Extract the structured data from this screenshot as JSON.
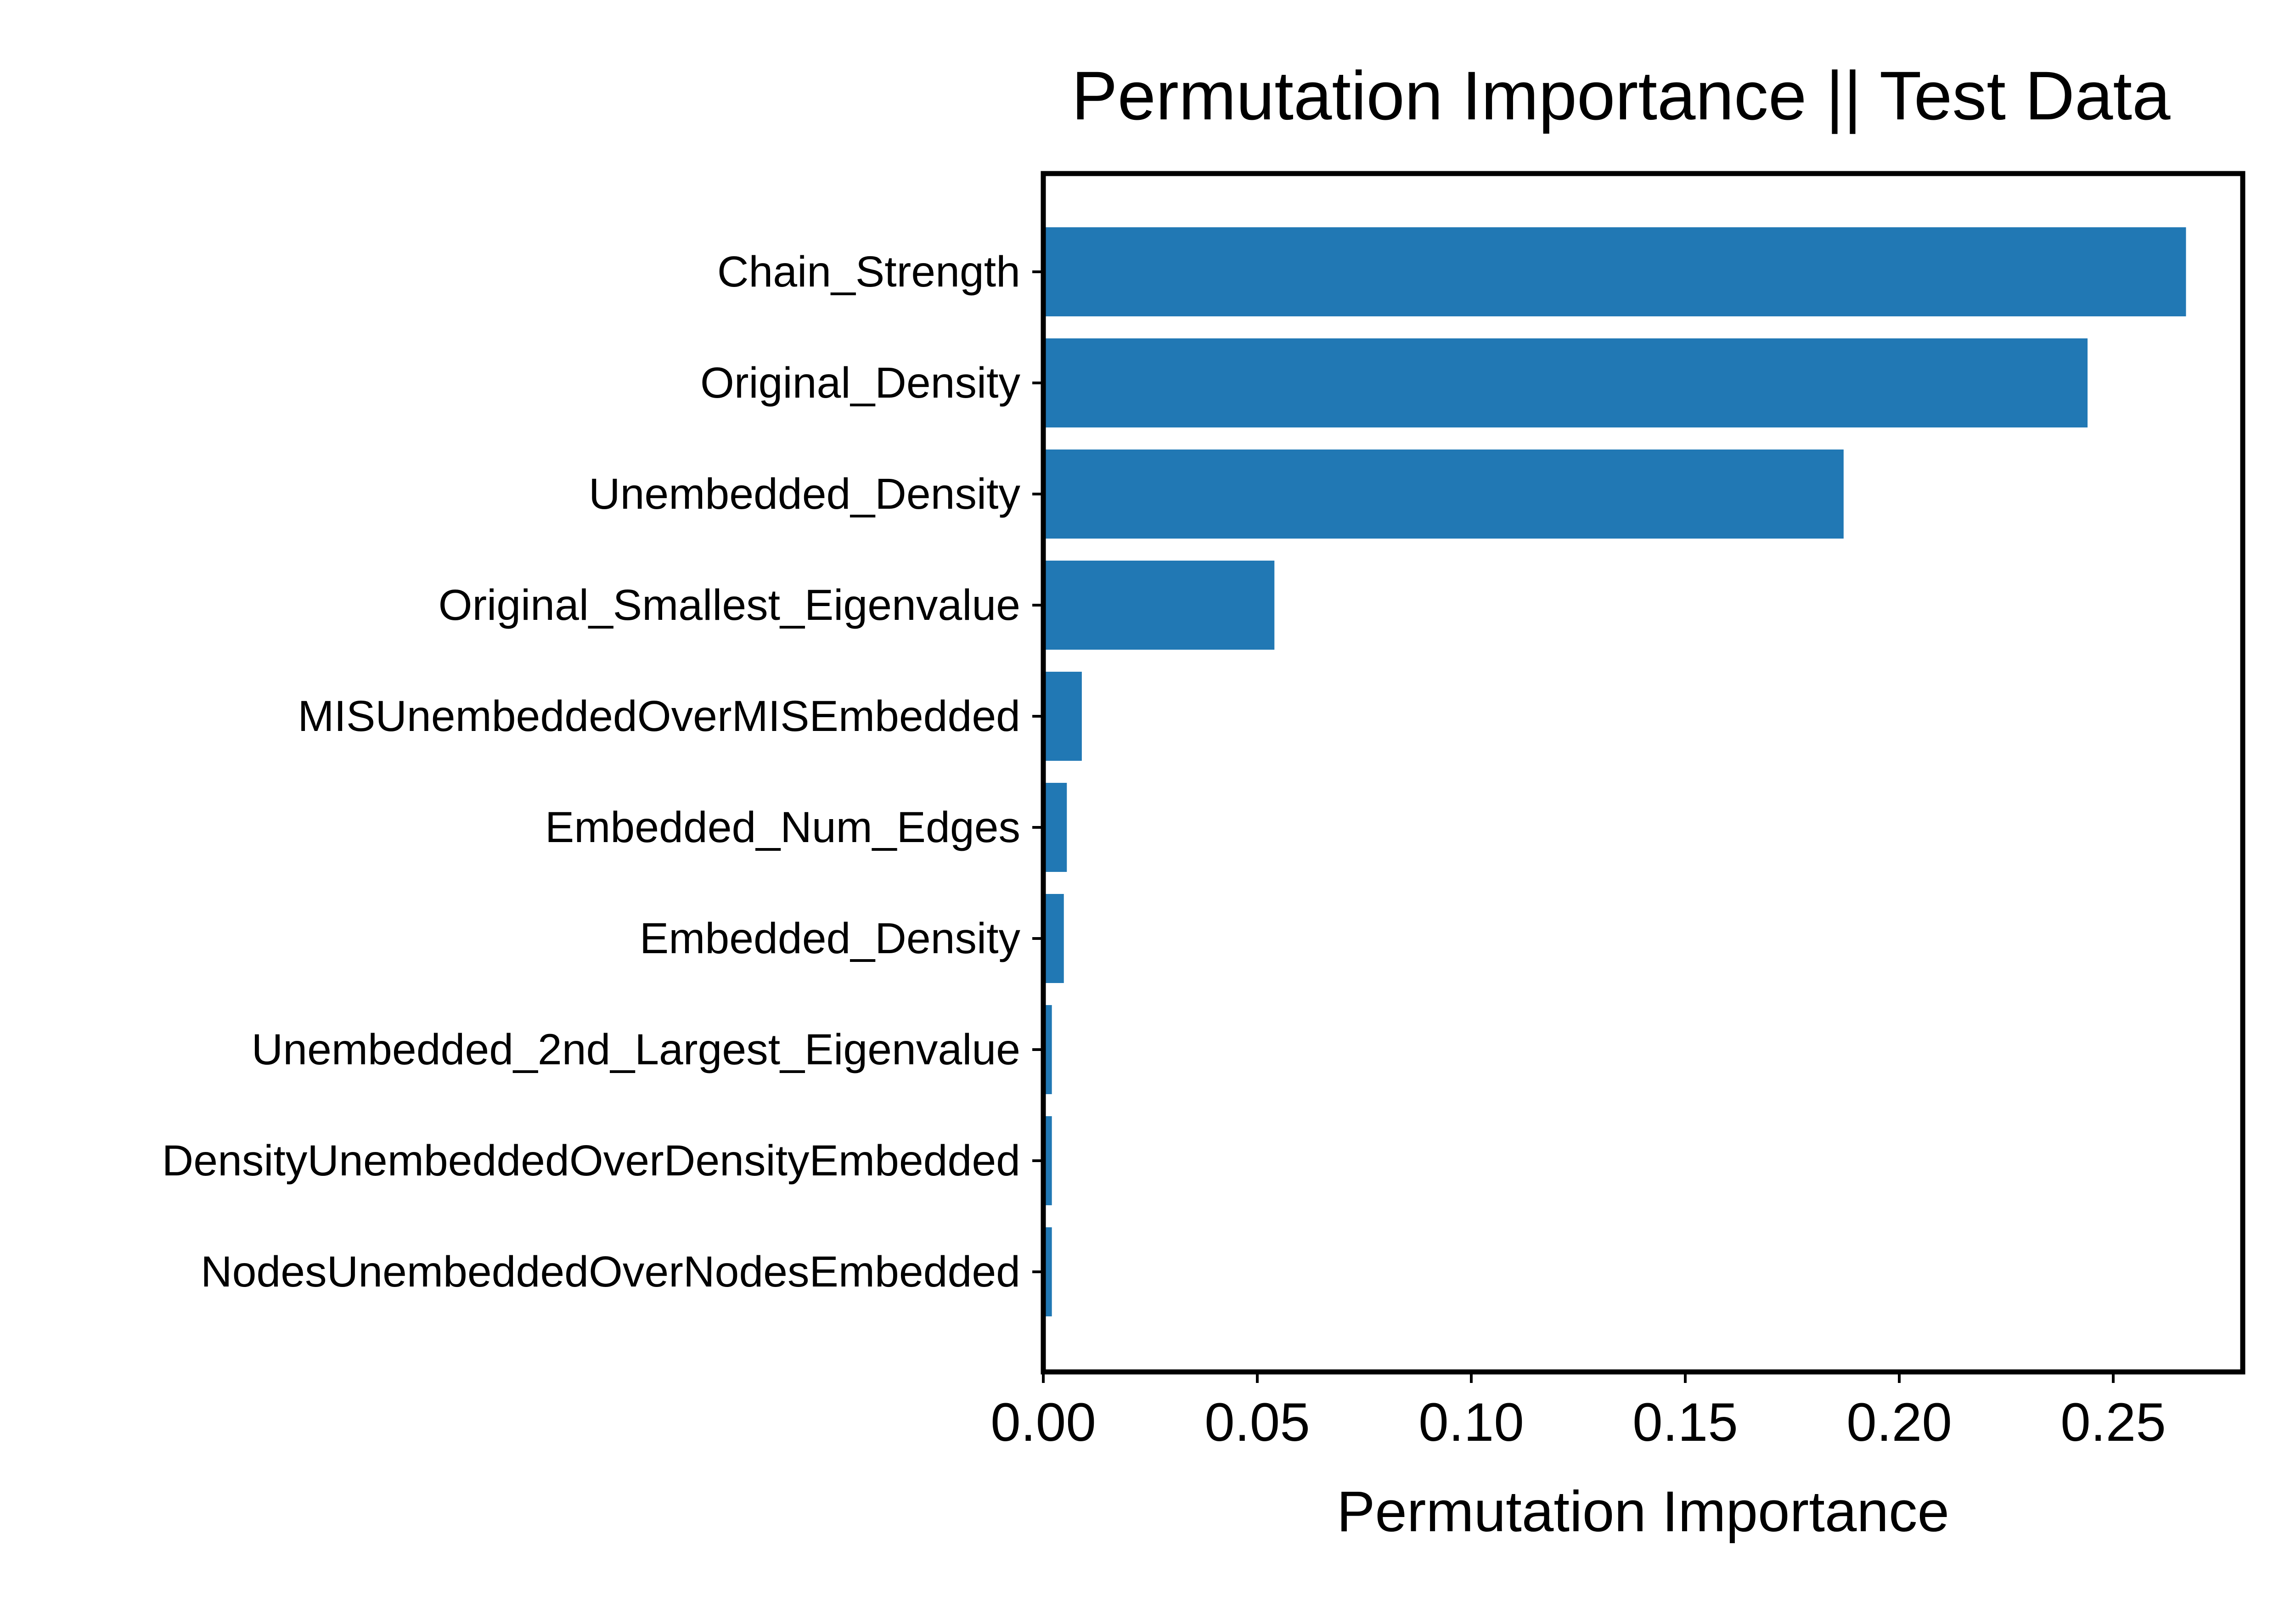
{
  "colors": {
    "bar": "#2178b4",
    "axes": "#000000",
    "background": "#ffffff"
  },
  "chart_data": {
    "type": "bar",
    "orientation": "horizontal",
    "title": "Permutation Importance || Test Data",
    "xlabel": "Permutation Importance",
    "ylabel": "",
    "xlim": [
      0,
      0.28
    ],
    "xticks": [
      0.0,
      0.05,
      0.1,
      0.15,
      0.2,
      0.25
    ],
    "xtick_labels": [
      "0.00",
      "0.05",
      "0.10",
      "0.15",
      "0.20",
      "0.25"
    ],
    "grid": false,
    "categories": [
      "Chain_Strength",
      "Original_Density",
      "Unembedded_Density",
      "Original_Smallest_Eigenvalue",
      "MISUnembeddedOverMISEmbedded",
      "Embedded_Num_Edges",
      "Embedded_Density",
      "Unembedded_2nd_Largest_Eigenvalue",
      "DensityUnembeddedOverDensityEmbedded",
      "NodesUnembeddedOverNodesEmbedded"
    ],
    "values": [
      0.267,
      0.244,
      0.187,
      0.054,
      0.009,
      0.0055,
      0.0048,
      0.002,
      0.002,
      0.002
    ]
  }
}
